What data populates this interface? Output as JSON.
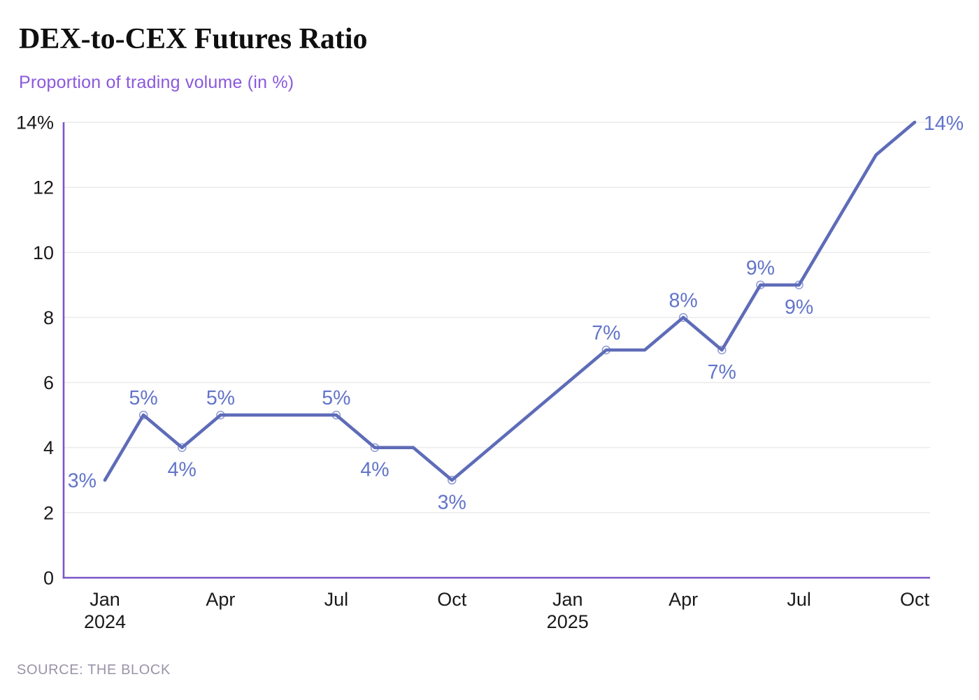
{
  "header": {
    "title": "DEX-to-CEX Futures Ratio",
    "subtitle": "Proportion of trading volume (in %)"
  },
  "footer": {
    "source": "SOURCE: THE BLOCK"
  },
  "colors": {
    "line": "#5e6cb8",
    "marker_stroke": "#8d99d6",
    "marker_fill": "#ffffff",
    "data_label": "#6274ca",
    "axis": "#7d54c8",
    "grid": "#ececec",
    "title": "#0f0f0f",
    "subtitle": "#8a59dd",
    "tick_label": "#1a1a1a",
    "source": "#9a93a8"
  },
  "chart_data": {
    "type": "line",
    "title": "DEX-to-CEX Futures Ratio",
    "subtitle": "Proportion of trading volume (in %)",
    "source": "SOURCE: THE BLOCK",
    "x": [
      "Jan 2024",
      "Feb 2024",
      "Mar 2024",
      "Apr 2024",
      "May 2024",
      "Jun 2024",
      "Jul 2024",
      "Aug 2024",
      "Sep 2024",
      "Oct 2024",
      "Nov 2024",
      "Dec 2024",
      "Jan 2025",
      "Feb 2025",
      "Mar 2025",
      "Apr 2025",
      "May 2025",
      "Jun 2025",
      "Jul 2025",
      "Aug 2025",
      "Sep 2025",
      "Oct 2025"
    ],
    "values": [
      3,
      5,
      4,
      5,
      5,
      5,
      5,
      4,
      4,
      3,
      4,
      5,
      6,
      7,
      7,
      8,
      7,
      9,
      9,
      11,
      13,
      14
    ],
    "ylim": [
      0,
      14
    ],
    "grid": true,
    "legend_position": "none",
    "yticks": [
      {
        "value": 0,
        "label": "0"
      },
      {
        "value": 2,
        "label": "2"
      },
      {
        "value": 4,
        "label": "4"
      },
      {
        "value": 6,
        "label": "6"
      },
      {
        "value": 8,
        "label": "8"
      },
      {
        "value": 10,
        "label": "10"
      },
      {
        "value": 12,
        "label": "12"
      },
      {
        "value": 14,
        "label": "14%"
      }
    ],
    "xticks": [
      {
        "index": 0,
        "label": "Jan",
        "year": "2024"
      },
      {
        "index": 3,
        "label": "Apr",
        "year": ""
      },
      {
        "index": 6,
        "label": "Jul",
        "year": ""
      },
      {
        "index": 9,
        "label": "Oct",
        "year": ""
      },
      {
        "index": 12,
        "label": "Jan",
        "year": "2025"
      },
      {
        "index": 15,
        "label": "Apr",
        "year": ""
      },
      {
        "index": 18,
        "label": "Jul",
        "year": ""
      },
      {
        "index": 21,
        "label": "Oct",
        "year": ""
      }
    ],
    "annotations": [
      {
        "index": 0,
        "text": "3%",
        "pos": "left",
        "marker": false
      },
      {
        "index": 1,
        "text": "5%",
        "pos": "above",
        "marker": true
      },
      {
        "index": 2,
        "text": "4%",
        "pos": "below",
        "marker": true
      },
      {
        "index": 3,
        "text": "5%",
        "pos": "above",
        "marker": true
      },
      {
        "index": 6,
        "text": "5%",
        "pos": "above",
        "marker": true
      },
      {
        "index": 7,
        "text": "4%",
        "pos": "below",
        "marker": true
      },
      {
        "index": 9,
        "text": "3%",
        "pos": "below",
        "marker": true
      },
      {
        "index": 13,
        "text": "7%",
        "pos": "above",
        "marker": true
      },
      {
        "index": 15,
        "text": "8%",
        "pos": "above",
        "marker": true
      },
      {
        "index": 16,
        "text": "7%",
        "pos": "below",
        "marker": true
      },
      {
        "index": 17,
        "text": "9%",
        "pos": "above",
        "marker": true
      },
      {
        "index": 18,
        "text": "9%",
        "pos": "below",
        "marker": true
      },
      {
        "index": 21,
        "text": "14%",
        "pos": "right",
        "marker": false
      }
    ]
  }
}
